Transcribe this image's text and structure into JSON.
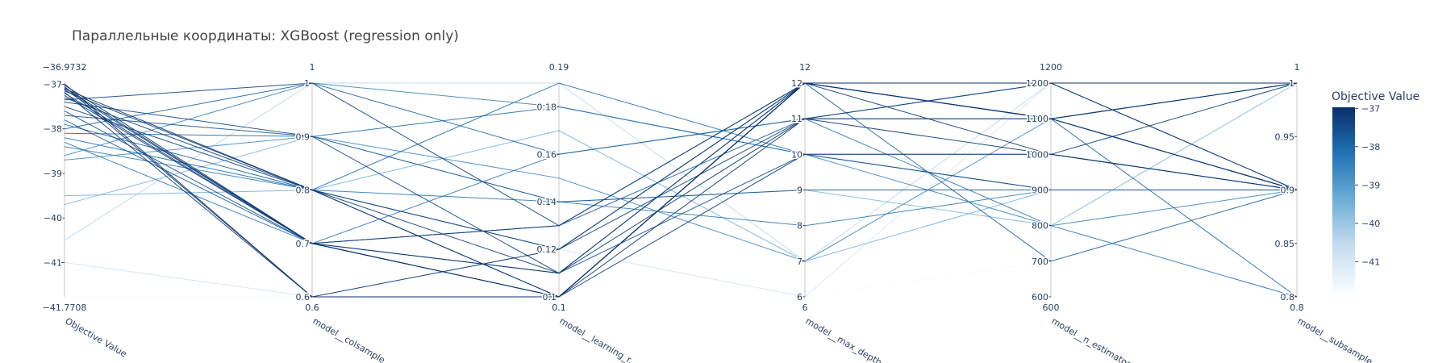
{
  "chart_data": {
    "type": "parallel_coordinates",
    "title": "Параллельные координаты: XGBoost (regression only)",
    "colorscale": [
      "#f7fbff",
      "#c6dbef",
      "#6baed6",
      "#2171b5",
      "#08306b"
    ],
    "colorbar": {
      "title": "Objective Value",
      "range": [
        -41.7708,
        -36.9732
      ],
      "ticks": [
        "−37",
        "−38",
        "−39",
        "−40",
        "−41"
      ],
      "tick_values": [
        -37,
        -38,
        -39,
        -40,
        -41
      ]
    },
    "axes": [
      {
        "label": "Objective Value",
        "range": [
          -41.7708,
          -36.9732
        ],
        "range_labels": [
          "−41.7708",
          "−36.9732"
        ],
        "ticks": [
          "−37",
          "−38",
          "−39",
          "−40",
          "−41"
        ],
        "tick_values": [
          -37,
          -38,
          -39,
          -40,
          -41
        ]
      },
      {
        "label": "model__colsample_...",
        "range": [
          0.6,
          1
        ],
        "range_labels": [
          "0.6",
          "1"
        ],
        "ticks": [
          "1",
          "0.9",
          "0.8",
          "0.7",
          "0.6"
        ],
        "tick_values": [
          1,
          0.9,
          0.8,
          0.7,
          0.6
        ]
      },
      {
        "label": "model__learning_r...",
        "range": [
          0.1,
          0.19
        ],
        "range_labels": [
          "0.1",
          "0.19"
        ],
        "ticks": [
          "0.18",
          "0.16",
          "0.14",
          "0.12",
          "0.1"
        ],
        "tick_values": [
          0.18,
          0.16,
          0.14,
          0.12,
          0.1
        ]
      },
      {
        "label": "model__max_depth",
        "range": [
          6,
          12
        ],
        "range_labels": [
          "6",
          "12"
        ],
        "ticks": [
          "12",
          "11",
          "10",
          "9",
          "8",
          "7",
          "6"
        ],
        "tick_values": [
          12,
          11,
          10,
          9,
          8,
          7,
          6
        ]
      },
      {
        "label": "model__n_estimators",
        "range": [
          600,
          1200
        ],
        "range_labels": [
          "600",
          "1200"
        ],
        "ticks": [
          "1200",
          "1100",
          "1000",
          "900",
          "800",
          "700",
          "600"
        ],
        "tick_values": [
          1200,
          1100,
          1000,
          900,
          800,
          700,
          600
        ]
      },
      {
        "label": "model__subsample",
        "range": [
          0.8,
          1
        ],
        "range_labels": [
          "0.8",
          "1"
        ],
        "ticks": [
          "1",
          "0.95",
          "0.9",
          "0.85",
          "0.8"
        ],
        "tick_values": [
          1,
          0.95,
          0.9,
          0.85,
          0.8
        ]
      }
    ],
    "trials": [
      [
        -36.99,
        0.6,
        0.1,
        12,
        1200,
        1
      ],
      [
        -37.02,
        0.7,
        0.1,
        12,
        1200,
        1
      ],
      [
        -37.05,
        0.6,
        0.12,
        12,
        1100,
        1
      ],
      [
        -37.08,
        0.7,
        0.11,
        12,
        1100,
        0.9
      ],
      [
        -37.1,
        0.8,
        0.1,
        12,
        1000,
        0.9
      ],
      [
        -37.12,
        0.7,
        0.1,
        11,
        1100,
        0.9
      ],
      [
        -37.15,
        0.8,
        0.11,
        11,
        1000,
        1
      ],
      [
        -37.18,
        0.6,
        0.1,
        12,
        1200,
        0.9
      ],
      [
        -37.2,
        0.7,
        0.13,
        12,
        1100,
        1
      ],
      [
        -37.25,
        0.7,
        0.1,
        10,
        1000,
        0.9
      ],
      [
        -37.3,
        0.8,
        0.12,
        11,
        1200,
        1
      ],
      [
        -37.35,
        1,
        0.13,
        12,
        1200,
        1
      ],
      [
        -37.4,
        0.9,
        0.11,
        12,
        1100,
        0.9
      ],
      [
        -37.5,
        0.8,
        0.1,
        12,
        1100,
        0.9
      ],
      [
        -37.6,
        0.7,
        0.11,
        10,
        900,
        0.9
      ],
      [
        -37.7,
        0.9,
        0.14,
        9,
        900,
        0.9
      ],
      [
        -37.8,
        0.7,
        0.13,
        11,
        1200,
        0.9
      ],
      [
        -37.9,
        0.8,
        0.12,
        12,
        700,
        0.9
      ],
      [
        -38.0,
        1,
        0.16,
        11,
        1100,
        0.8
      ],
      [
        -38.1,
        0.9,
        0.18,
        10,
        1000,
        0.9
      ],
      [
        -38.2,
        0.8,
        0.19,
        10,
        900,
        0.9
      ],
      [
        -38.3,
        0.7,
        0.16,
        11,
        800,
        0.8
      ],
      [
        -38.4,
        0.8,
        0.14,
        8,
        900,
        0.9
      ],
      [
        -38.6,
        1,
        0.18,
        10,
        800,
        0.9
      ],
      [
        -38.7,
        0.9,
        0.15,
        7,
        1100,
        1
      ],
      [
        -39.5,
        0.8,
        0.17,
        7,
        900,
        0.9
      ],
      [
        -39.7,
        0.9,
        0.14,
        9,
        800,
        1
      ],
      [
        -40.5,
        1,
        0.19,
        7,
        1200,
        1
      ],
      [
        -41.0,
        0.6,
        0.12,
        6,
        1200,
        1
      ],
      [
        -41.77,
        0.6,
        0.18,
        6,
        700,
        1
      ]
    ]
  }
}
